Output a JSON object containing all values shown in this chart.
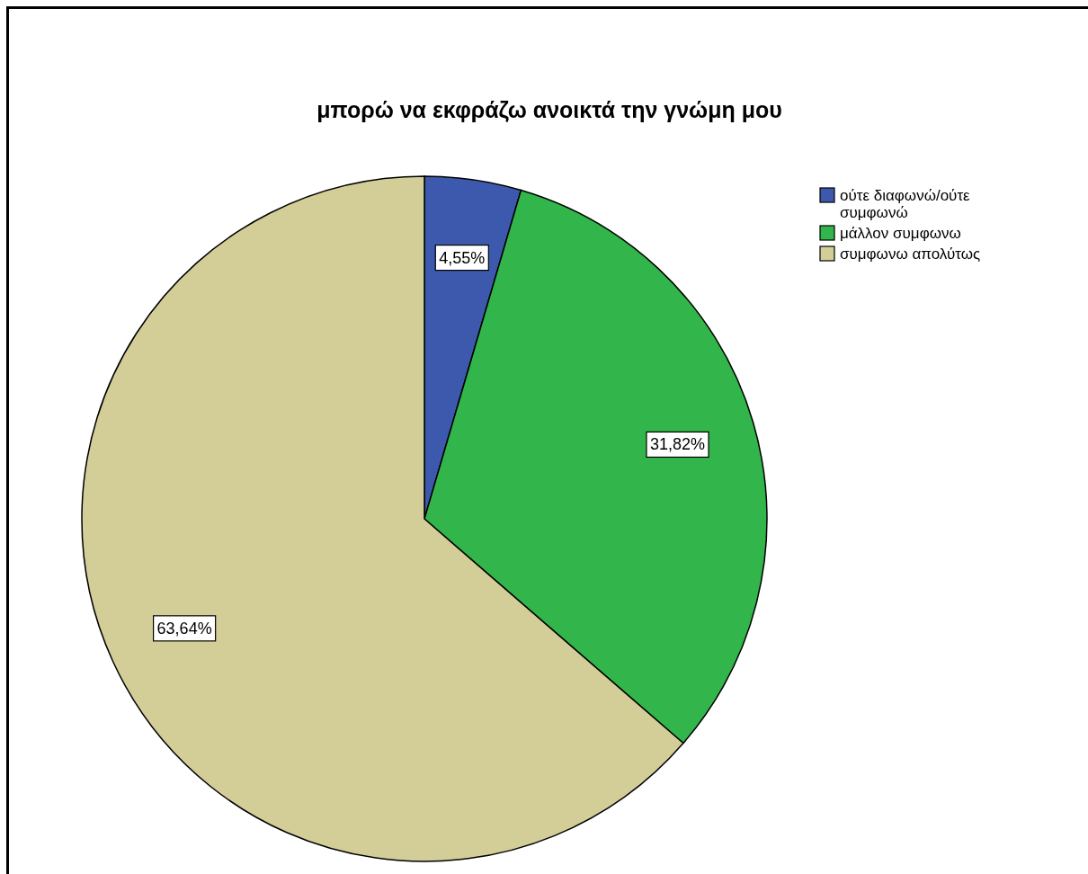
{
  "chart_data": {
    "type": "pie",
    "title": "μπορώ να εκφράζω ανοικτά την γνώμη μου",
    "categories": [
      "ούτε διαφωνώ/ούτε συμφωνώ",
      "μάλλον συμφωνω",
      "συμφωνω απολύτως"
    ],
    "values": [
      4.55,
      31.82,
      63.64
    ],
    "colors": [
      "#3d59ad",
      "#32b54a",
      "#d3ce98"
    ],
    "value_labels": [
      "4,55%",
      "31,82%",
      "63,64%"
    ],
    "legend": "top right"
  }
}
